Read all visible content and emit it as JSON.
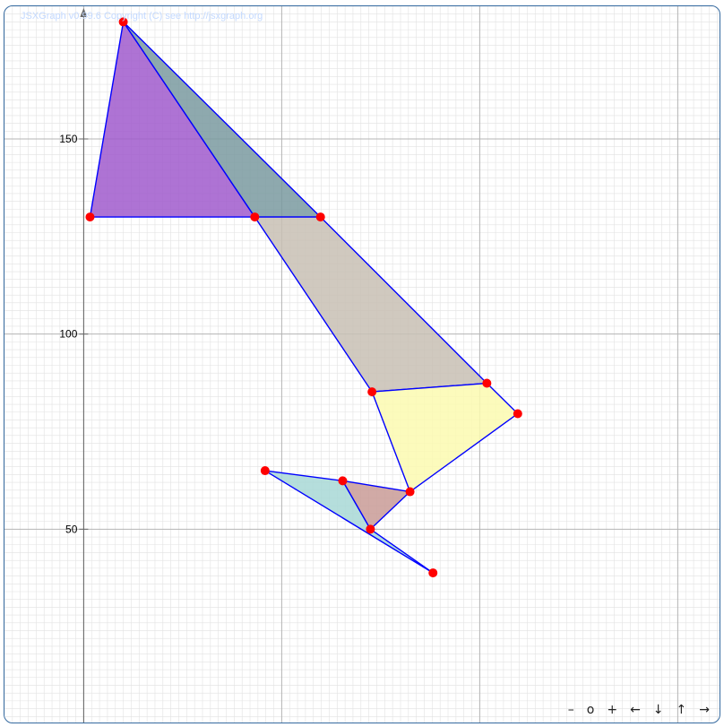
{
  "board": {
    "copyright": "JSXGraph v0.99.6 Copyright (C) see http://jsxgraph.org",
    "xlim": [
      -20,
      161
    ],
    "ylim": [
      0,
      184
    ],
    "y_ticks": [
      {
        "value": 50,
        "label": "50"
      },
      {
        "value": 100,
        "label": "100"
      },
      {
        "value": 150,
        "label": "150"
      }
    ]
  },
  "navigation": {
    "zoom_out": "–",
    "zoom_reset": "o",
    "zoom_in": "+",
    "left": "←",
    "down": "↓",
    "up": "↑",
    "right": "→"
  },
  "chart_data": {
    "type": "geometry",
    "points": {
      "A": [
        10,
        180
      ],
      "B": [
        1.6,
        130
      ],
      "C": [
        43.2,
        130
      ],
      "D": [
        59.8,
        130
      ],
      "E": [
        72.8,
        85.2
      ],
      "F": [
        101.8,
        87.4
      ],
      "G": [
        109.6,
        79.6
      ],
      "H": [
        82.4,
        59.6
      ],
      "I": [
        65.4,
        62.4
      ],
      "J": [
        45.8,
        65
      ],
      "K": [
        88.2,
        38.8
      ],
      "L": [
        72.4,
        50
      ]
    },
    "polygons": [
      {
        "name": "purple-triangle",
        "vertices": [
          "A",
          "B",
          "C"
        ],
        "fill": "#a05acc"
      },
      {
        "name": "slate-triangle",
        "vertices": [
          "A",
          "C",
          "D"
        ],
        "fill": "#7a9aa0"
      },
      {
        "name": "taupe-quadrilateral",
        "vertices": [
          "C",
          "D",
          "F",
          "E"
        ],
        "fill": "#c8bfb4"
      },
      {
        "name": "yellow-quadrilateral",
        "vertices": [
          "E",
          "F",
          "G",
          "H"
        ],
        "fill": "#fbfab0"
      },
      {
        "name": "teal-polygon",
        "vertices": [
          "J",
          "I",
          "L",
          "K"
        ],
        "fill": "#a8d8d6"
      },
      {
        "name": "rose-triangle",
        "vertices": [
          "I",
          "H",
          "L"
        ],
        "fill": "#c99b97"
      }
    ],
    "point_color": "#ff0000",
    "edge_color": "#0000ff",
    "grid": true
  }
}
